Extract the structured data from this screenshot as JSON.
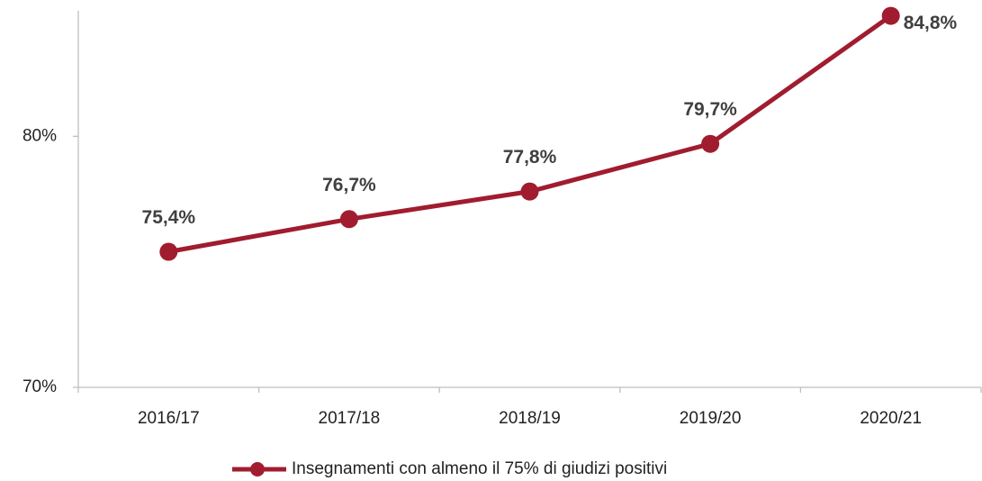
{
  "chart_data": {
    "type": "line",
    "categories": [
      "2016/17",
      "2017/18",
      "2018/19",
      "2019/20",
      "2020/21"
    ],
    "series": [
      {
        "name": "Insegnamenti con almeno il 75% di giudizi positivi",
        "color": "#a01c2e",
        "values": [
          75.4,
          76.7,
          77.8,
          79.7,
          84.8
        ],
        "value_labels": [
          "75,4%",
          "76,7%",
          "77,8%",
          "79,7%",
          "84,8%"
        ]
      }
    ],
    "ylim": [
      70,
      85
    ],
    "yticks": [
      {
        "value": 70,
        "label": "70%"
      },
      {
        "value": 80,
        "label": "80%"
      }
    ],
    "legend": "bottom"
  }
}
